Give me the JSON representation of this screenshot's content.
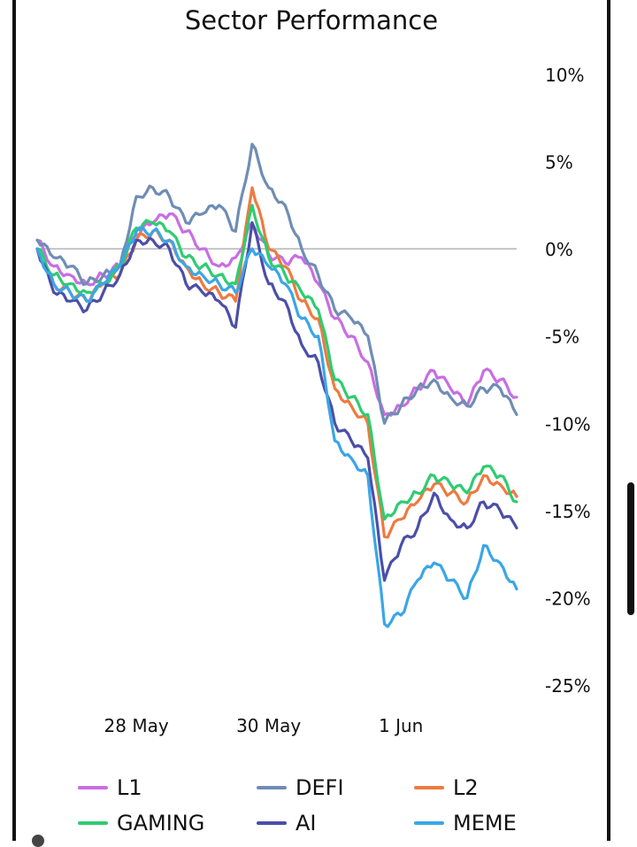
{
  "chart_data": {
    "type": "line",
    "title": "Sector Performance",
    "xlabel": "",
    "ylabel": "",
    "x_ticks": [
      "28 May",
      "30 May",
      "1 Jun"
    ],
    "y_ticks": [
      "10%",
      "5%",
      "0%",
      "-5%",
      "-10%",
      "-15%",
      "-20%",
      "-25%"
    ],
    "ylim": [
      -25,
      10
    ],
    "y_axis_position": "right",
    "x_start": "2024-05-26T12:00",
    "x_end": "2024-06-02T18:00",
    "baseline": 0,
    "grid": false,
    "legend_position": "bottom",
    "series": [
      {
        "name": "L1",
        "color": "#c86ee3",
        "x": [
          "2024-05-26T12:00",
          "2024-05-26T18:00",
          "2024-05-27T00:00",
          "2024-05-27T06:00",
          "2024-05-27T12:00",
          "2024-05-27T18:00",
          "2024-05-28T00:00",
          "2024-05-28T06:00",
          "2024-05-28T12:00",
          "2024-05-28T18:00",
          "2024-05-29T00:00",
          "2024-05-29T06:00",
          "2024-05-29T12:00",
          "2024-05-29T18:00",
          "2024-05-30T00:00",
          "2024-05-30T06:00",
          "2024-05-30T12:00",
          "2024-05-30T18:00",
          "2024-05-31T00:00",
          "2024-05-31T06:00",
          "2024-05-31T12:00",
          "2024-05-31T18:00",
          "2024-06-01T00:00",
          "2024-06-01T06:00",
          "2024-06-01T12:00",
          "2024-06-01T18:00",
          "2024-06-02T00:00",
          "2024-06-02T06:00",
          "2024-06-02T12:00",
          "2024-06-02T18:00"
        ],
        "values": [
          0.5,
          -1,
          -1.5,
          -2,
          -1.5,
          -1,
          0.8,
          1.5,
          2,
          1,
          0,
          -1,
          -0.5,
          1.5,
          -0.3,
          -0.8,
          -0.5,
          -2,
          -4,
          -5,
          -6.5,
          -9.5,
          -9,
          -8,
          -7,
          -8,
          -9,
          -7,
          -7.5,
          -8.5
        ]
      },
      {
        "name": "DEFI",
        "color": "#6f8db5",
        "x": [
          "2024-05-26T12:00",
          "2024-05-26T18:00",
          "2024-05-27T00:00",
          "2024-05-27T06:00",
          "2024-05-27T12:00",
          "2024-05-27T18:00",
          "2024-05-28T00:00",
          "2024-05-28T06:00",
          "2024-05-28T12:00",
          "2024-05-28T18:00",
          "2024-05-29T00:00",
          "2024-05-29T06:00",
          "2024-05-29T12:00",
          "2024-05-29T18:00",
          "2024-05-30T00:00",
          "2024-05-30T06:00",
          "2024-05-30T12:00",
          "2024-05-30T18:00",
          "2024-05-31T00:00",
          "2024-05-31T06:00",
          "2024-05-31T12:00",
          "2024-05-31T18:00",
          "2024-06-01T00:00",
          "2024-06-01T06:00",
          "2024-06-01T12:00",
          "2024-06-01T18:00",
          "2024-06-02T00:00",
          "2024-06-02T06:00",
          "2024-06-02T12:00",
          "2024-06-02T18:00"
        ],
        "values": [
          0.5,
          -0.5,
          -1,
          -2,
          -1.5,
          -1,
          3,
          3.5,
          3,
          1.5,
          2,
          2.5,
          1,
          6,
          3.5,
          2.5,
          0,
          -1.5,
          -3.5,
          -4,
          -5,
          -10,
          -9,
          -8,
          -7.5,
          -8.5,
          -9,
          -8,
          -8,
          -9.5
        ]
      },
      {
        "name": "L2",
        "color": "#ee7a3f",
        "x": [
          "2024-05-26T12:00",
          "2024-05-26T18:00",
          "2024-05-27T00:00",
          "2024-05-27T06:00",
          "2024-05-27T12:00",
          "2024-05-27T18:00",
          "2024-05-28T00:00",
          "2024-05-28T06:00",
          "2024-05-28T12:00",
          "2024-05-28T18:00",
          "2024-05-29T00:00",
          "2024-05-29T06:00",
          "2024-05-29T12:00",
          "2024-05-29T18:00",
          "2024-05-30T00:00",
          "2024-05-30T06:00",
          "2024-05-30T12:00",
          "2024-05-30T18:00",
          "2024-05-31T00:00",
          "2024-05-31T06:00",
          "2024-05-31T12:00",
          "2024-05-31T18:00",
          "2024-06-01T00:00",
          "2024-06-01T06:00",
          "2024-06-01T12:00",
          "2024-06-01T18:00",
          "2024-06-02T00:00",
          "2024-06-02T06:00",
          "2024-06-02T12:00",
          "2024-06-02T18:00"
        ],
        "values": [
          0,
          -2,
          -2.5,
          -3,
          -2,
          -1.5,
          0.5,
          1,
          0.5,
          -1,
          -2,
          -2.5,
          -3,
          3.5,
          0,
          -1,
          -3,
          -4,
          -8,
          -9,
          -10,
          -16.5,
          -15.5,
          -14.5,
          -13.5,
          -14,
          -14.5,
          -13,
          -13.5,
          -14.2
        ]
      },
      {
        "name": "GAMING",
        "color": "#2ecc71",
        "x": [
          "2024-05-26T12:00",
          "2024-05-26T18:00",
          "2024-05-27T00:00",
          "2024-05-27T06:00",
          "2024-05-27T12:00",
          "2024-05-27T18:00",
          "2024-05-28T00:00",
          "2024-05-28T06:00",
          "2024-05-28T12:00",
          "2024-05-28T18:00",
          "2024-05-29T00:00",
          "2024-05-29T06:00",
          "2024-05-29T12:00",
          "2024-05-29T18:00",
          "2024-05-30T00:00",
          "2024-05-30T06:00",
          "2024-05-30T12:00",
          "2024-05-30T18:00",
          "2024-05-31T00:00",
          "2024-05-31T06:00",
          "2024-05-31T12:00",
          "2024-05-31T18:00",
          "2024-06-01T00:00",
          "2024-06-01T06:00",
          "2024-06-01T12:00",
          "2024-06-01T18:00",
          "2024-06-02T00:00",
          "2024-06-02T06:00",
          "2024-06-02T12:00",
          "2024-06-02T18:00"
        ],
        "values": [
          0,
          -1.5,
          -2,
          -2.5,
          -2,
          -1,
          1.2,
          1.5,
          1,
          -0.5,
          -1,
          -1.5,
          -2,
          2.5,
          -0.5,
          -1.5,
          -2.5,
          -3.5,
          -7.5,
          -8.5,
          -9.5,
          -15.5,
          -14.5,
          -14,
          -13,
          -13.5,
          -14,
          -12.5,
          -13,
          -14.5
        ]
      },
      {
        "name": "AI",
        "color": "#4b4fa8",
        "x": [
          "2024-05-26T12:00",
          "2024-05-26T18:00",
          "2024-05-27T00:00",
          "2024-05-27T06:00",
          "2024-05-27T12:00",
          "2024-05-27T18:00",
          "2024-05-28T00:00",
          "2024-05-28T06:00",
          "2024-05-28T12:00",
          "2024-05-28T18:00",
          "2024-05-29T00:00",
          "2024-05-29T06:00",
          "2024-05-29T12:00",
          "2024-05-29T18:00",
          "2024-05-30T00:00",
          "2024-05-30T06:00",
          "2024-05-30T12:00",
          "2024-05-30T18:00",
          "2024-05-31T00:00",
          "2024-05-31T06:00",
          "2024-05-31T12:00",
          "2024-05-31T18:00",
          "2024-06-01T00:00",
          "2024-06-01T06:00",
          "2024-06-01T12:00",
          "2024-06-01T18:00",
          "2024-06-02T00:00",
          "2024-06-02T06:00",
          "2024-06-02T12:00",
          "2024-06-02T18:00"
        ],
        "values": [
          0,
          -2.5,
          -3,
          -3.5,
          -2.5,
          -1.5,
          0.5,
          0.5,
          0,
          -2,
          -2.5,
          -3,
          -4.5,
          1.5,
          -2,
          -3,
          -5.5,
          -6.5,
          -10,
          -11,
          -12,
          -19,
          -17,
          -16,
          -14,
          -15.5,
          -16,
          -14.5,
          -15,
          -16
        ]
      },
      {
        "name": "MEME",
        "color": "#3aa6e6",
        "x": [
          "2024-05-26T12:00",
          "2024-05-26T18:00",
          "2024-05-27T00:00",
          "2024-05-27T06:00",
          "2024-05-27T12:00",
          "2024-05-27T18:00",
          "2024-05-28T00:00",
          "2024-05-28T06:00",
          "2024-05-28T12:00",
          "2024-05-28T18:00",
          "2024-05-29T00:00",
          "2024-05-29T06:00",
          "2024-05-29T12:00",
          "2024-05-29T18:00",
          "2024-05-30T00:00",
          "2024-05-30T06:00",
          "2024-05-30T12:00",
          "2024-05-30T18:00",
          "2024-05-31T00:00",
          "2024-05-31T06:00",
          "2024-05-31T12:00",
          "2024-05-31T18:00",
          "2024-06-01T00:00",
          "2024-06-01T06:00",
          "2024-06-01T12:00",
          "2024-06-01T18:00",
          "2024-06-02T00:00",
          "2024-06-02T06:00",
          "2024-06-02T12:00",
          "2024-06-02T18:00"
        ],
        "values": [
          0,
          -2,
          -2.5,
          -3,
          -2,
          -1,
          1,
          1,
          0.5,
          -1,
          -1.5,
          -2,
          -2.5,
          0,
          -1,
          -2,
          -4,
          -5,
          -11,
          -12,
          -13,
          -21.5,
          -21,
          -19,
          -18,
          -19,
          -20,
          -17,
          -18,
          -19.5
        ]
      }
    ]
  }
}
